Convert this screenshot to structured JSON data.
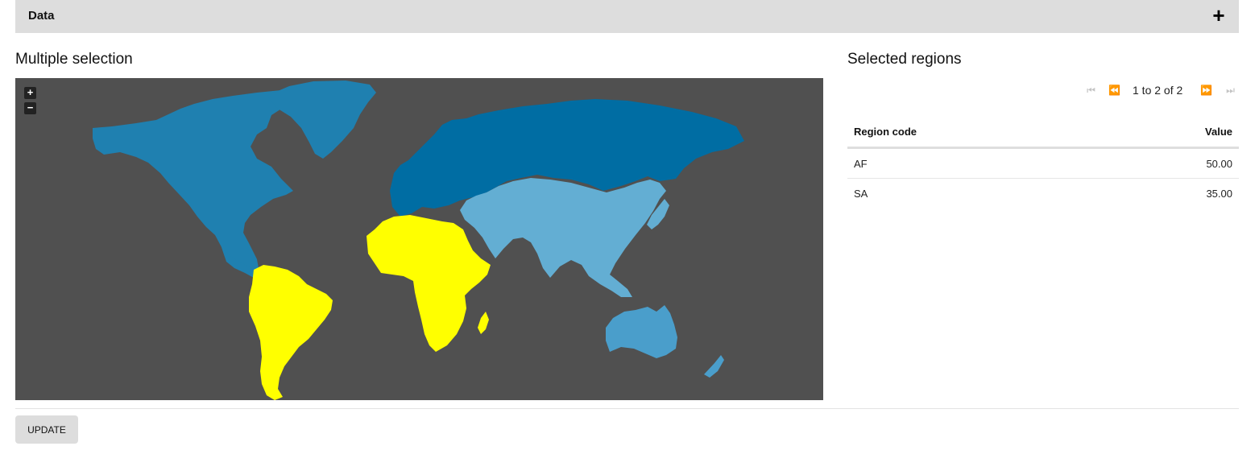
{
  "data_section": {
    "label": "Data",
    "toggle_symbol": "+"
  },
  "map_panel": {
    "title": "Multiple selection",
    "zoom_in": "+",
    "zoom_out": "−",
    "colors": {
      "background": "#505050",
      "north_america": "#1F80B0",
      "greenland": "#1F80B0",
      "europe_russia": "#006DA3",
      "asia": "#63AED3",
      "oceania": "#4A9ECB",
      "selected": "#FFFF00"
    },
    "selected_regions": [
      "AF",
      "SA"
    ]
  },
  "table_panel": {
    "title": "Selected regions",
    "pagination": {
      "text": "1 to 2 of 2",
      "first": "⏮",
      "prev": "⏪",
      "next": "⏩",
      "last": "⏭"
    },
    "columns": {
      "region_code": "Region code",
      "value": "Value"
    },
    "rows": [
      {
        "code": "AF",
        "value": "50.00"
      },
      {
        "code": "SA",
        "value": "35.00"
      }
    ]
  },
  "actions": {
    "update_label": "UPDATE"
  }
}
